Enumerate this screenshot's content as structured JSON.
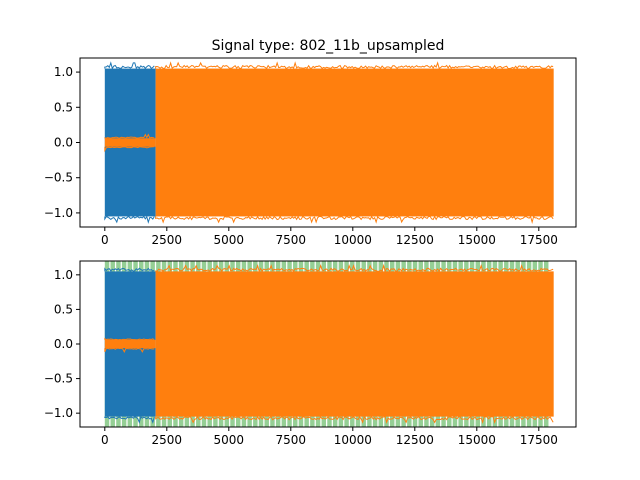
{
  "chart_data": [
    {
      "type": "line",
      "title": "Signal type: 802_11b_upsampled",
      "xlim": [
        -1000,
        19000
      ],
      "ylim": [
        -1.2,
        1.2
      ],
      "x_ticks": [
        0,
        2500,
        5000,
        7500,
        10000,
        12500,
        15000,
        17500
      ],
      "y_ticks": [
        -1.0,
        -0.5,
        0.0,
        0.5,
        1.0
      ],
      "x_tick_labels": [
        "0",
        "2500",
        "5000",
        "7500",
        "10000",
        "12500",
        "15000",
        "17500"
      ],
      "y_tick_labels": [
        "−1.0",
        "−0.5",
        "0.0",
        "0.5",
        "1.0"
      ],
      "grid": false,
      "series": [
        {
          "color": "#1f77b4",
          "segments": [
            {
              "x_start": 0,
              "x_end": 2050,
              "y_min": -1.05,
              "y_max": 1.05
            }
          ]
        },
        {
          "color": "#ff7f0e",
          "segments": [
            {
              "x_start": 0,
              "x_end": 2050,
              "y_min": -0.06,
              "y_max": 0.06
            },
            {
              "x_start": 2050,
              "x_end": 18100,
              "y_min": -1.05,
              "y_max": 1.05
            }
          ]
        }
      ]
    },
    {
      "type": "line",
      "title": "",
      "xlim": [
        -1000,
        19000
      ],
      "ylim": [
        -1.2,
        1.2
      ],
      "x_ticks": [
        0,
        2500,
        5000,
        7500,
        10000,
        12500,
        15000,
        17500
      ],
      "y_ticks": [
        -1.0,
        -0.5,
        0.0,
        0.5,
        1.0
      ],
      "x_tick_labels": [
        "0",
        "2500",
        "5000",
        "7500",
        "10000",
        "12500",
        "15000",
        "17500"
      ],
      "y_tick_labels": [
        "−1.0",
        "−0.5",
        "0.0",
        "0.5",
        "1.0"
      ],
      "grid": false,
      "highlight": {
        "color": "#2ca02c",
        "alpha": 0.5,
        "x_start": 0,
        "x_end": 17900,
        "period": 230
      },
      "series": [
        {
          "color": "#1f77b4",
          "segments": [
            {
              "x_start": 0,
              "x_end": 2050,
              "y_min": -1.05,
              "y_max": 1.05
            }
          ]
        },
        {
          "color": "#ff7f0e",
          "segments": [
            {
              "x_start": 0,
              "x_end": 2050,
              "y_min": -0.06,
              "y_max": 0.06
            },
            {
              "x_start": 2050,
              "x_end": 18100,
              "y_min": -1.05,
              "y_max": 1.05
            }
          ]
        }
      ]
    }
  ]
}
